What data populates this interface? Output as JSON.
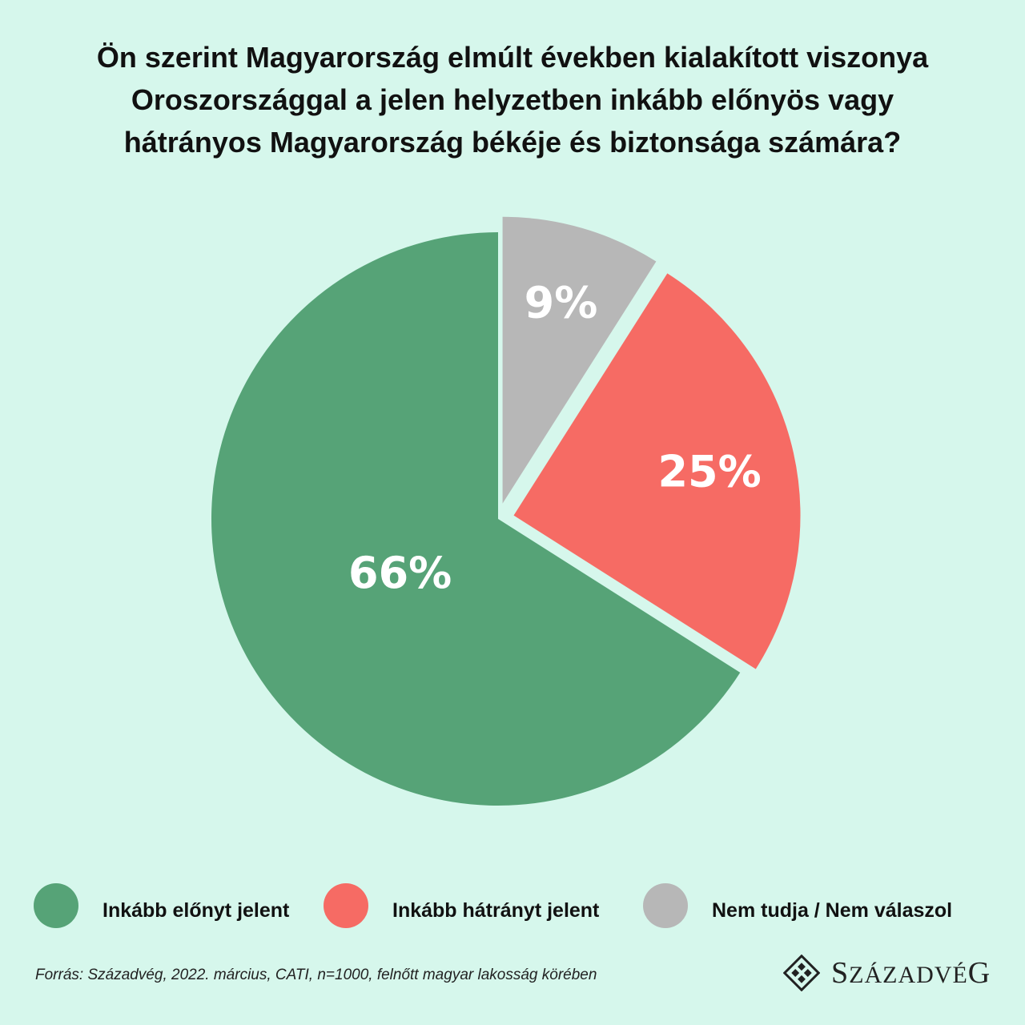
{
  "title": {
    "line1": "Ön szerint Magyarország elmúlt években kialakított viszonya",
    "line2": "Oroszországgal a jelen helyzetben inkább előnyös vagy",
    "line3": "hátrányos Magyarország békéje és biztonsága számára?"
  },
  "chart_data": {
    "type": "pie",
    "title": "Ön szerint Magyarország elmúlt években kialakított viszonya Oroszországgal a jelen helyzetben inkább előnyös vagy hátrányos Magyarország békéje és biztonsága számára?",
    "slices": [
      {
        "label": "Nem tudja / Nem válaszol",
        "value": 9,
        "display": "9%",
        "color": "#b7b7b7"
      },
      {
        "label": "Inkább hátrányt jelent",
        "value": 25,
        "display": "25%",
        "color": "#f66b64"
      },
      {
        "label": "Inkább előnyt jelent",
        "value": 66,
        "display": "66%",
        "color": "#56a377"
      }
    ],
    "legend_position": "bottom"
  },
  "legend": [
    {
      "label": "Inkább előnyt jelent",
      "color": "#56a377"
    },
    {
      "label": "Inkább hátrányt jelent",
      "color": "#f66b64"
    },
    {
      "label": "Nem tudja / Nem válaszol",
      "color": "#b7b7b7"
    }
  ],
  "source": "Forrás: Századvég, 2022. március, CATI, n=1000, felnőtt magyar lakosság körében",
  "logo": {
    "first": "S",
    "middle": "ZÁZADVÉ",
    "last": "G"
  }
}
